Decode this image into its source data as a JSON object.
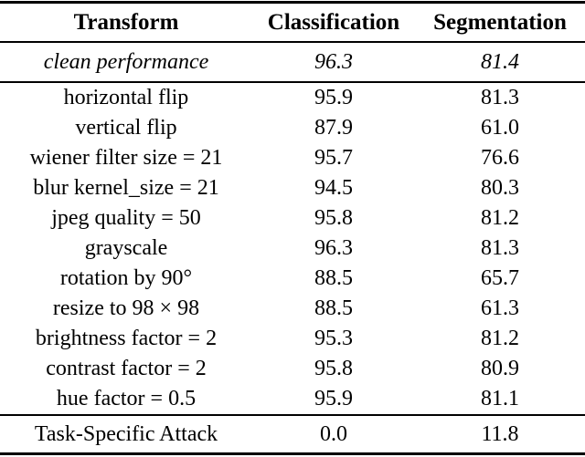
{
  "colors": {
    "background": "#ffffff",
    "text": "#000000",
    "rule": "#000000"
  },
  "table": {
    "columns": [
      {
        "label": "Transform"
      },
      {
        "label": "Classification"
      },
      {
        "label": "Segmentation"
      }
    ],
    "clean_row": {
      "transform": "clean performance",
      "classification": "96.3",
      "segmentation": "81.4"
    },
    "rows": [
      {
        "transform": "horizontal flip",
        "classification": "95.9",
        "segmentation": "81.3"
      },
      {
        "transform": "vertical flip",
        "classification": "87.9",
        "segmentation": "61.0"
      },
      {
        "transform": "wiener filter size = 21",
        "classification": "95.7",
        "segmentation": "76.6"
      },
      {
        "transform": "blur kernel_size = 21",
        "classification": "94.5",
        "segmentation": "80.3"
      },
      {
        "transform": "jpeg quality = 50",
        "classification": "95.8",
        "segmentation": "81.2"
      },
      {
        "transform": "grayscale",
        "classification": "96.3",
        "segmentation": "81.3"
      },
      {
        "transform": "rotation by 90°",
        "classification": "88.5",
        "segmentation": "65.7"
      },
      {
        "transform": "resize to 98 × 98",
        "classification": "88.5",
        "segmentation": "61.3"
      },
      {
        "transform": "brightness factor = 2",
        "classification": "95.3",
        "segmentation": "81.2"
      },
      {
        "transform": "contrast factor = 2",
        "classification": "95.8",
        "segmentation": "80.9"
      },
      {
        "transform": "hue factor = 0.5",
        "classification": "95.9",
        "segmentation": "81.1"
      }
    ],
    "attack_row": {
      "transform": "Task-Specific Attack",
      "classification": "0.0",
      "segmentation": "11.8"
    }
  }
}
